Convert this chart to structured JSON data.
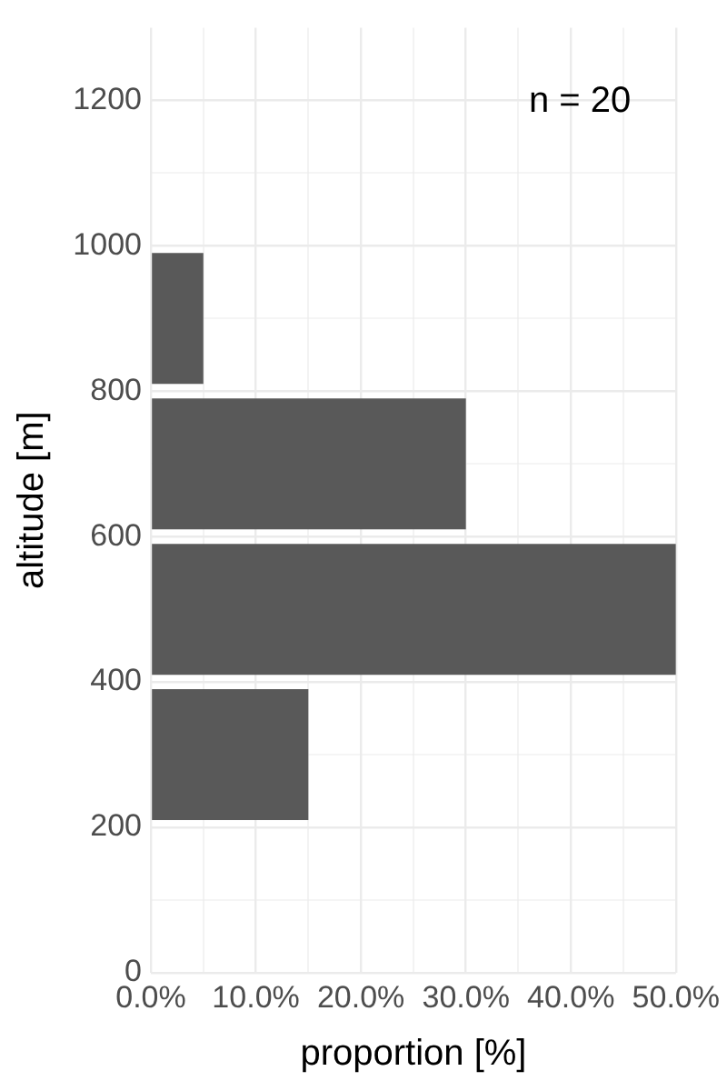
{
  "chart_data": {
    "type": "histogram",
    "orientation": "horizontal",
    "bins": [
      200,
      400,
      600,
      800,
      1000
    ],
    "values": [
      15,
      50,
      30,
      5
    ],
    "color": "#595959",
    "xlabel": "proportion [%]",
    "ylabel": "altitude [m]",
    "xlim": [
      0,
      50
    ],
    "xticks": [
      {
        "value": 0,
        "label": "0.0%"
      },
      {
        "value": 5,
        "label": null
      },
      {
        "value": 10,
        "label": "10.0%"
      },
      {
        "value": 15,
        "label": null
      },
      {
        "value": 20,
        "label": "20.0%"
      },
      {
        "value": 25,
        "label": null
      },
      {
        "value": 30,
        "label": "30.0%"
      },
      {
        "value": 35,
        "label": null
      },
      {
        "value": 40,
        "label": "40.0%"
      },
      {
        "value": 45,
        "label": null
      },
      {
        "value": 50,
        "label": "50.0%"
      }
    ],
    "ylim": [
      0,
      1300
    ],
    "yticks": [
      0,
      {
        "value": 100,
        "label": null
      },
      200,
      {
        "value": 300,
        "label": null
      },
      400,
      600,
      {
        "value": 700,
        "label": null
      },
      800,
      {
        "value": 900,
        "label": null
      },
      1000,
      {
        "value": 1100,
        "label": null
      },
      1200
    ],
    "grid": true,
    "annotations": [
      "n = 20"
    ]
  }
}
